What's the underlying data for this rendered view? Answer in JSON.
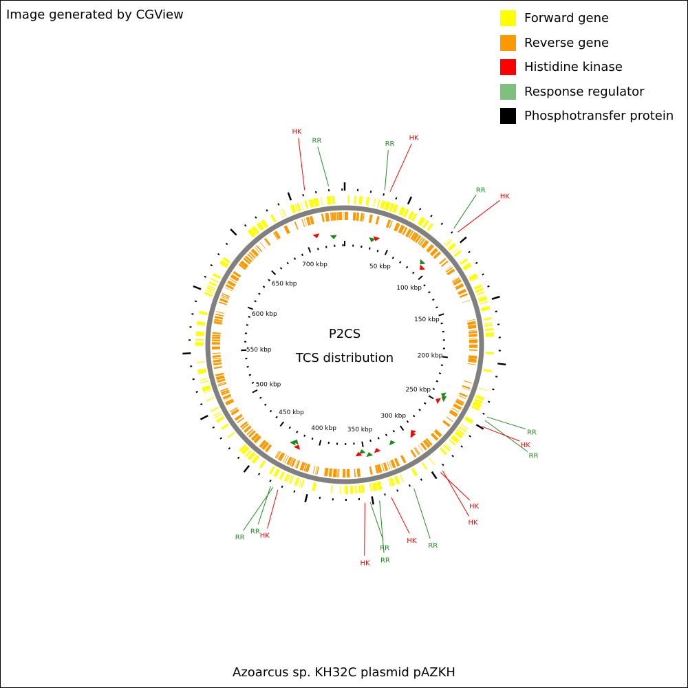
{
  "credit": "Image generated by CGView",
  "title": "Azoarcus sp. KH32C plasmid pAZKH",
  "center_text": {
    "line1": "P2CS",
    "line2": "TCS distribution"
  },
  "legend": [
    {
      "label": "Forward gene",
      "color": "#ffff00"
    },
    {
      "label": "Reverse gene",
      "color": "#ff9900"
    },
    {
      "label": "Histidine kinase",
      "color": "#ff0000"
    },
    {
      "label": "Response regulator",
      "color": "#7fbf7f"
    },
    {
      "label": "Phosphotransfer protein",
      "color": "#000000"
    }
  ],
  "colors": {
    "forward": "#ffff00",
    "reverse": "#ff9900",
    "hk": "#ff0000",
    "rr_marker": "#1a8a1a",
    "rr_text": "#228b22",
    "backbone": "#808080",
    "ticks": "#000000"
  },
  "sequence_length_kbp": 742,
  "ruler_labels": [
    "50 kbp",
    "100 kbp",
    "150 kbp",
    "200 kbp",
    "250 kbp",
    "300 kbp",
    "350 kbp",
    "400 kbp",
    "450 kbp",
    "500 kbp",
    "550 kbp",
    "600 kbp",
    "650 kbp",
    "700 kbp"
  ],
  "ruler_label_kbp": [
    50,
    100,
    150,
    200,
    250,
    300,
    350,
    400,
    450,
    500,
    550,
    600,
    650,
    700
  ],
  "tcs_features": [
    {
      "type": "RR",
      "kbp": 30
    },
    {
      "type": "HK",
      "kbp": 34
    },
    {
      "type": "RR",
      "kbp": 89
    },
    {
      "type": "HK",
      "kbp": 93
    },
    {
      "type": "RR",
      "kbp": 241
    },
    {
      "type": "RR",
      "kbp": 244
    },
    {
      "type": "HK",
      "kbp": 249
    },
    {
      "type": "HK",
      "kbp": 293
    },
    {
      "type": "HK",
      "kbp": 295
    },
    {
      "type": "RR",
      "kbp": 318
    },
    {
      "type": "HK",
      "kbp": 336
    },
    {
      "type": "RR",
      "kbp": 345
    },
    {
      "type": "RR",
      "kbp": 352
    },
    {
      "type": "HK",
      "kbp": 356
    },
    {
      "type": "HK",
      "kbp": 422
    },
    {
      "type": "RR",
      "kbp": 426
    },
    {
      "type": "RR",
      "kbp": 428
    },
    {
      "type": "HK",
      "kbp": 712
    },
    {
      "type": "RR",
      "kbp": 730
    }
  ]
}
